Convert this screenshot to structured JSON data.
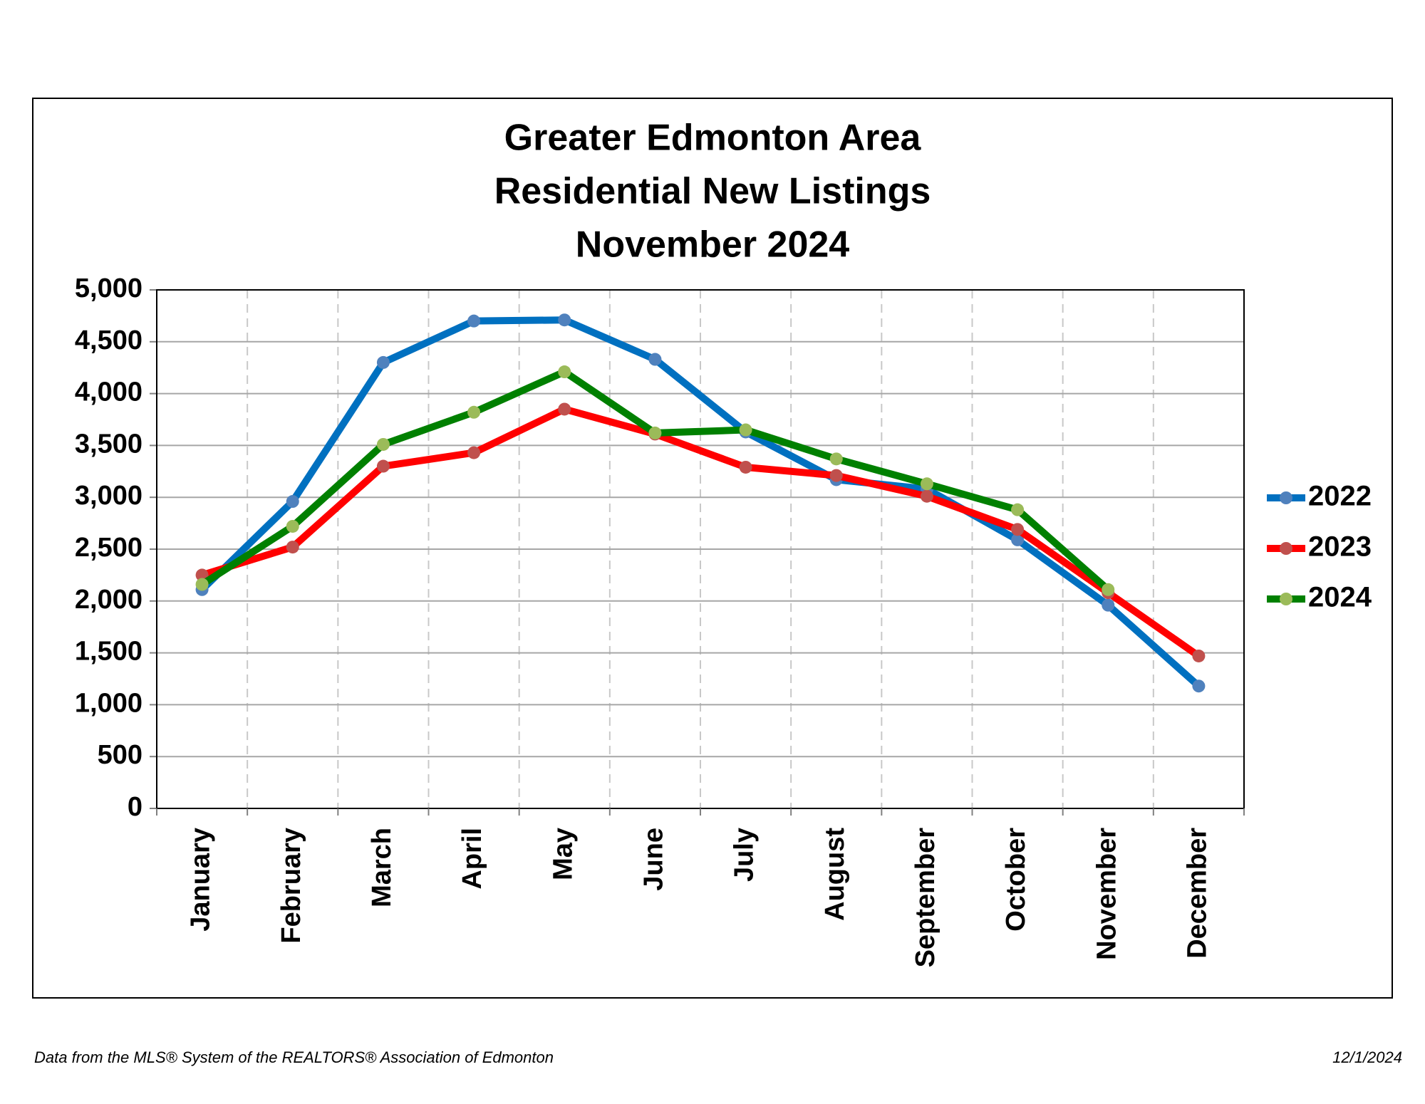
{
  "chart_data": {
    "type": "line",
    "title": [
      "Greater Edmonton Area",
      "Residential New Listings",
      "November 2024"
    ],
    "categories": [
      "January",
      "February",
      "March",
      "April",
      "May",
      "June",
      "July",
      "August",
      "September",
      "October",
      "November",
      "December"
    ],
    "series": [
      {
        "name": "2022",
        "color": "#0070c0",
        "marker_color": "#4f81bd",
        "values": [
          2110,
          2960,
          4300,
          4700,
          4710,
          4330,
          3630,
          3170,
          3080,
          2590,
          1960,
          1180
        ]
      },
      {
        "name": "2023",
        "color": "#ff0000",
        "marker_color": "#c0504d",
        "values": [
          2250,
          2520,
          3300,
          3430,
          3850,
          3610,
          3290,
          3210,
          3010,
          2690,
          2080,
          1470
        ]
      },
      {
        "name": "2024",
        "color": "#008000",
        "marker_color": "#9bbb59",
        "values": [
          2160,
          2720,
          3510,
          3820,
          4210,
          3620,
          3650,
          3370,
          3130,
          2880,
          2110,
          null
        ]
      }
    ],
    "ylim": [
      0,
      5000
    ],
    "yticks": [
      0,
      500,
      {
        "value": 1000,
        "label": "1,000"
      },
      {
        "value": 1500,
        "label": "1,500"
      },
      {
        "value": 2000,
        "label": "2,000"
      },
      {
        "value": 2500,
        "label": "2,500"
      },
      {
        "value": 3000,
        "label": "3,000"
      },
      {
        "value": 3500,
        "label": "3,500"
      },
      {
        "value": 4000,
        "label": "4,000"
      },
      {
        "value": 4500,
        "label": "4,500"
      },
      {
        "value": 5000,
        "label": "5,000"
      }
    ],
    "grid": true,
    "legend": "right"
  },
  "footer": {
    "source": "Data from the MLS® System of the REALTORS® Association of Edmonton",
    "date": "12/1/2024"
  }
}
